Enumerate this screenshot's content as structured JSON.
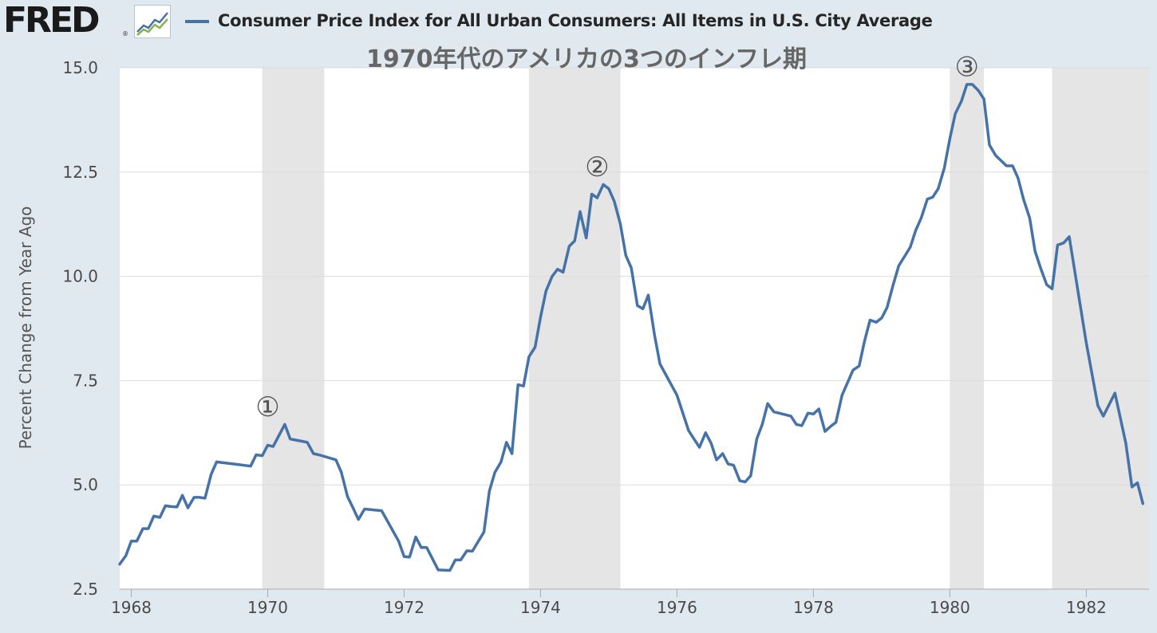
{
  "header": {
    "logo_text": "FRED",
    "logo_reg": "®",
    "legend_label": "Consumer Price Index for All Urban Consumers: All Items in U.S. City Average"
  },
  "colors": {
    "background": "#e1e9f0",
    "plot_background": "#ffffff",
    "recession_band": "#e5e5e5",
    "series_line": "#4572a7",
    "gridline": "#dcdcdc",
    "annotation_text": "#555555"
  },
  "icons": {
    "logo_chart": "line-chart-icon"
  },
  "chart_data": {
    "type": "line",
    "title": "1970年代のアメリカの3つのインフレ期",
    "xlabel": "",
    "ylabel": "Percent Change from Year Ago",
    "xlim": [
      1967.83,
      1982.92
    ],
    "ylim": [
      2.5,
      15.0
    ],
    "yticks": [
      "2.5",
      "5.0",
      "7.5",
      "10.0",
      "12.5",
      "15.0"
    ],
    "xticks": [
      "1968",
      "1970",
      "1972",
      "1974",
      "1976",
      "1978",
      "1980",
      "1982"
    ],
    "grid": true,
    "legend": "top-left",
    "recessions": [
      {
        "start": 1969.92,
        "end": 1970.83
      },
      {
        "start": 1973.83,
        "end": 1975.17
      },
      {
        "start": 1980.0,
        "end": 1980.5
      },
      {
        "start": 1981.5,
        "end": 1982.92
      }
    ],
    "annotations": [
      {
        "label": "①",
        "x": 1970.0,
        "y": 6.65
      },
      {
        "label": "②",
        "x": 1974.83,
        "y": 12.4
      },
      {
        "label": "③",
        "x": 1980.25,
        "y": 14.8
      }
    ],
    "series": [
      {
        "values": [
          [
            1967.83,
            3.1
          ],
          [
            1967.92,
            3.3
          ],
          [
            1968.0,
            3.65
          ],
          [
            1968.08,
            3.65
          ],
          [
            1968.17,
            3.95
          ],
          [
            1968.25,
            3.95
          ],
          [
            1968.33,
            4.25
          ],
          [
            1968.42,
            4.22
          ],
          [
            1968.5,
            4.5
          ],
          [
            1968.58,
            4.48
          ],
          [
            1968.67,
            4.47
          ],
          [
            1968.75,
            4.75
          ],
          [
            1968.83,
            4.45
          ],
          [
            1968.92,
            4.7
          ],
          [
            1969.0,
            4.7
          ],
          [
            1969.08,
            4.68
          ],
          [
            1969.17,
            5.25
          ],
          [
            1969.25,
            5.55
          ],
          [
            1969.5,
            5.5
          ],
          [
            1969.75,
            5.45
          ],
          [
            1969.83,
            5.72
          ],
          [
            1969.92,
            5.7
          ],
          [
            1970.0,
            5.95
          ],
          [
            1970.08,
            5.92
          ],
          [
            1970.17,
            6.2
          ],
          [
            1970.25,
            6.45
          ],
          [
            1970.33,
            6.1
          ],
          [
            1970.58,
            6.02
          ],
          [
            1970.67,
            5.75
          ],
          [
            1970.75,
            5.72
          ],
          [
            1971.0,
            5.6
          ],
          [
            1971.08,
            5.3
          ],
          [
            1971.17,
            4.72
          ],
          [
            1971.25,
            4.45
          ],
          [
            1971.33,
            4.17
          ],
          [
            1971.42,
            4.42
          ],
          [
            1971.67,
            4.38
          ],
          [
            1971.92,
            3.65
          ],
          [
            1972.0,
            3.28
          ],
          [
            1972.08,
            3.27
          ],
          [
            1972.17,
            3.75
          ],
          [
            1972.25,
            3.5
          ],
          [
            1972.33,
            3.5
          ],
          [
            1972.5,
            2.96
          ],
          [
            1972.67,
            2.95
          ],
          [
            1972.75,
            3.2
          ],
          [
            1972.83,
            3.2
          ],
          [
            1972.92,
            3.42
          ],
          [
            1973.0,
            3.41
          ],
          [
            1973.17,
            3.87
          ],
          [
            1973.25,
            4.85
          ],
          [
            1973.33,
            5.3
          ],
          [
            1973.42,
            5.55
          ],
          [
            1973.5,
            6.02
          ],
          [
            1973.58,
            5.75
          ],
          [
            1973.67,
            7.4
          ],
          [
            1973.75,
            7.37
          ],
          [
            1973.83,
            8.07
          ],
          [
            1973.92,
            8.3
          ],
          [
            1974.0,
            9.03
          ],
          [
            1974.08,
            9.65
          ],
          [
            1974.17,
            10.0
          ],
          [
            1974.25,
            10.17
          ],
          [
            1974.33,
            10.1
          ],
          [
            1974.42,
            10.72
          ],
          [
            1974.5,
            10.85
          ],
          [
            1974.58,
            11.55
          ],
          [
            1974.67,
            10.92
          ],
          [
            1974.75,
            11.97
          ],
          [
            1974.83,
            11.88
          ],
          [
            1974.92,
            12.2
          ],
          [
            1975.0,
            12.1
          ],
          [
            1975.08,
            11.8
          ],
          [
            1975.17,
            11.25
          ],
          [
            1975.25,
            10.5
          ],
          [
            1975.33,
            10.2
          ],
          [
            1975.42,
            9.3
          ],
          [
            1975.5,
            9.22
          ],
          [
            1975.58,
            9.55
          ],
          [
            1975.67,
            8.6
          ],
          [
            1975.75,
            7.9
          ],
          [
            1976.0,
            7.15
          ],
          [
            1976.17,
            6.3
          ],
          [
            1976.33,
            5.9
          ],
          [
            1976.42,
            6.25
          ],
          [
            1976.5,
            6.0
          ],
          [
            1976.58,
            5.6
          ],
          [
            1976.67,
            5.75
          ],
          [
            1976.75,
            5.5
          ],
          [
            1976.83,
            5.47
          ],
          [
            1976.92,
            5.1
          ],
          [
            1977.0,
            5.07
          ],
          [
            1977.08,
            5.22
          ],
          [
            1977.17,
            6.1
          ],
          [
            1977.25,
            6.45
          ],
          [
            1977.33,
            6.95
          ],
          [
            1977.42,
            6.75
          ],
          [
            1977.67,
            6.65
          ],
          [
            1977.75,
            6.45
          ],
          [
            1977.83,
            6.42
          ],
          [
            1977.92,
            6.72
          ],
          [
            1978.0,
            6.7
          ],
          [
            1978.08,
            6.82
          ],
          [
            1978.17,
            6.28
          ],
          [
            1978.25,
            6.4
          ],
          [
            1978.33,
            6.5
          ],
          [
            1978.42,
            7.15
          ],
          [
            1978.58,
            7.75
          ],
          [
            1978.67,
            7.85
          ],
          [
            1978.75,
            8.45
          ],
          [
            1978.83,
            8.95
          ],
          [
            1978.92,
            8.9
          ],
          [
            1979.0,
            9.0
          ],
          [
            1979.08,
            9.25
          ],
          [
            1979.17,
            9.8
          ],
          [
            1979.25,
            10.25
          ],
          [
            1979.42,
            10.7
          ],
          [
            1979.5,
            11.1
          ],
          [
            1979.58,
            11.4
          ],
          [
            1979.67,
            11.85
          ],
          [
            1979.75,
            11.9
          ],
          [
            1979.83,
            12.1
          ],
          [
            1979.92,
            12.6
          ],
          [
            1980.0,
            13.3
          ],
          [
            1980.08,
            13.9
          ],
          [
            1980.17,
            14.2
          ],
          [
            1980.25,
            14.6
          ],
          [
            1980.33,
            14.6
          ],
          [
            1980.42,
            14.45
          ],
          [
            1980.5,
            14.25
          ],
          [
            1980.58,
            13.15
          ],
          [
            1980.67,
            12.9
          ],
          [
            1980.83,
            12.65
          ],
          [
            1980.92,
            12.65
          ],
          [
            1981.0,
            12.35
          ],
          [
            1981.08,
            11.85
          ],
          [
            1981.17,
            11.4
          ],
          [
            1981.25,
            10.6
          ],
          [
            1981.33,
            10.2
          ],
          [
            1981.42,
            9.8
          ],
          [
            1981.5,
            9.7
          ],
          [
            1981.58,
            10.75
          ],
          [
            1981.67,
            10.8
          ],
          [
            1981.75,
            10.95
          ],
          [
            1982.0,
            8.4
          ],
          [
            1982.17,
            6.9
          ],
          [
            1982.25,
            6.65
          ],
          [
            1982.42,
            7.2
          ],
          [
            1982.58,
            6.0
          ],
          [
            1982.67,
            4.95
          ],
          [
            1982.75,
            5.05
          ],
          [
            1982.83,
            4.55
          ]
        ]
      }
    ]
  }
}
